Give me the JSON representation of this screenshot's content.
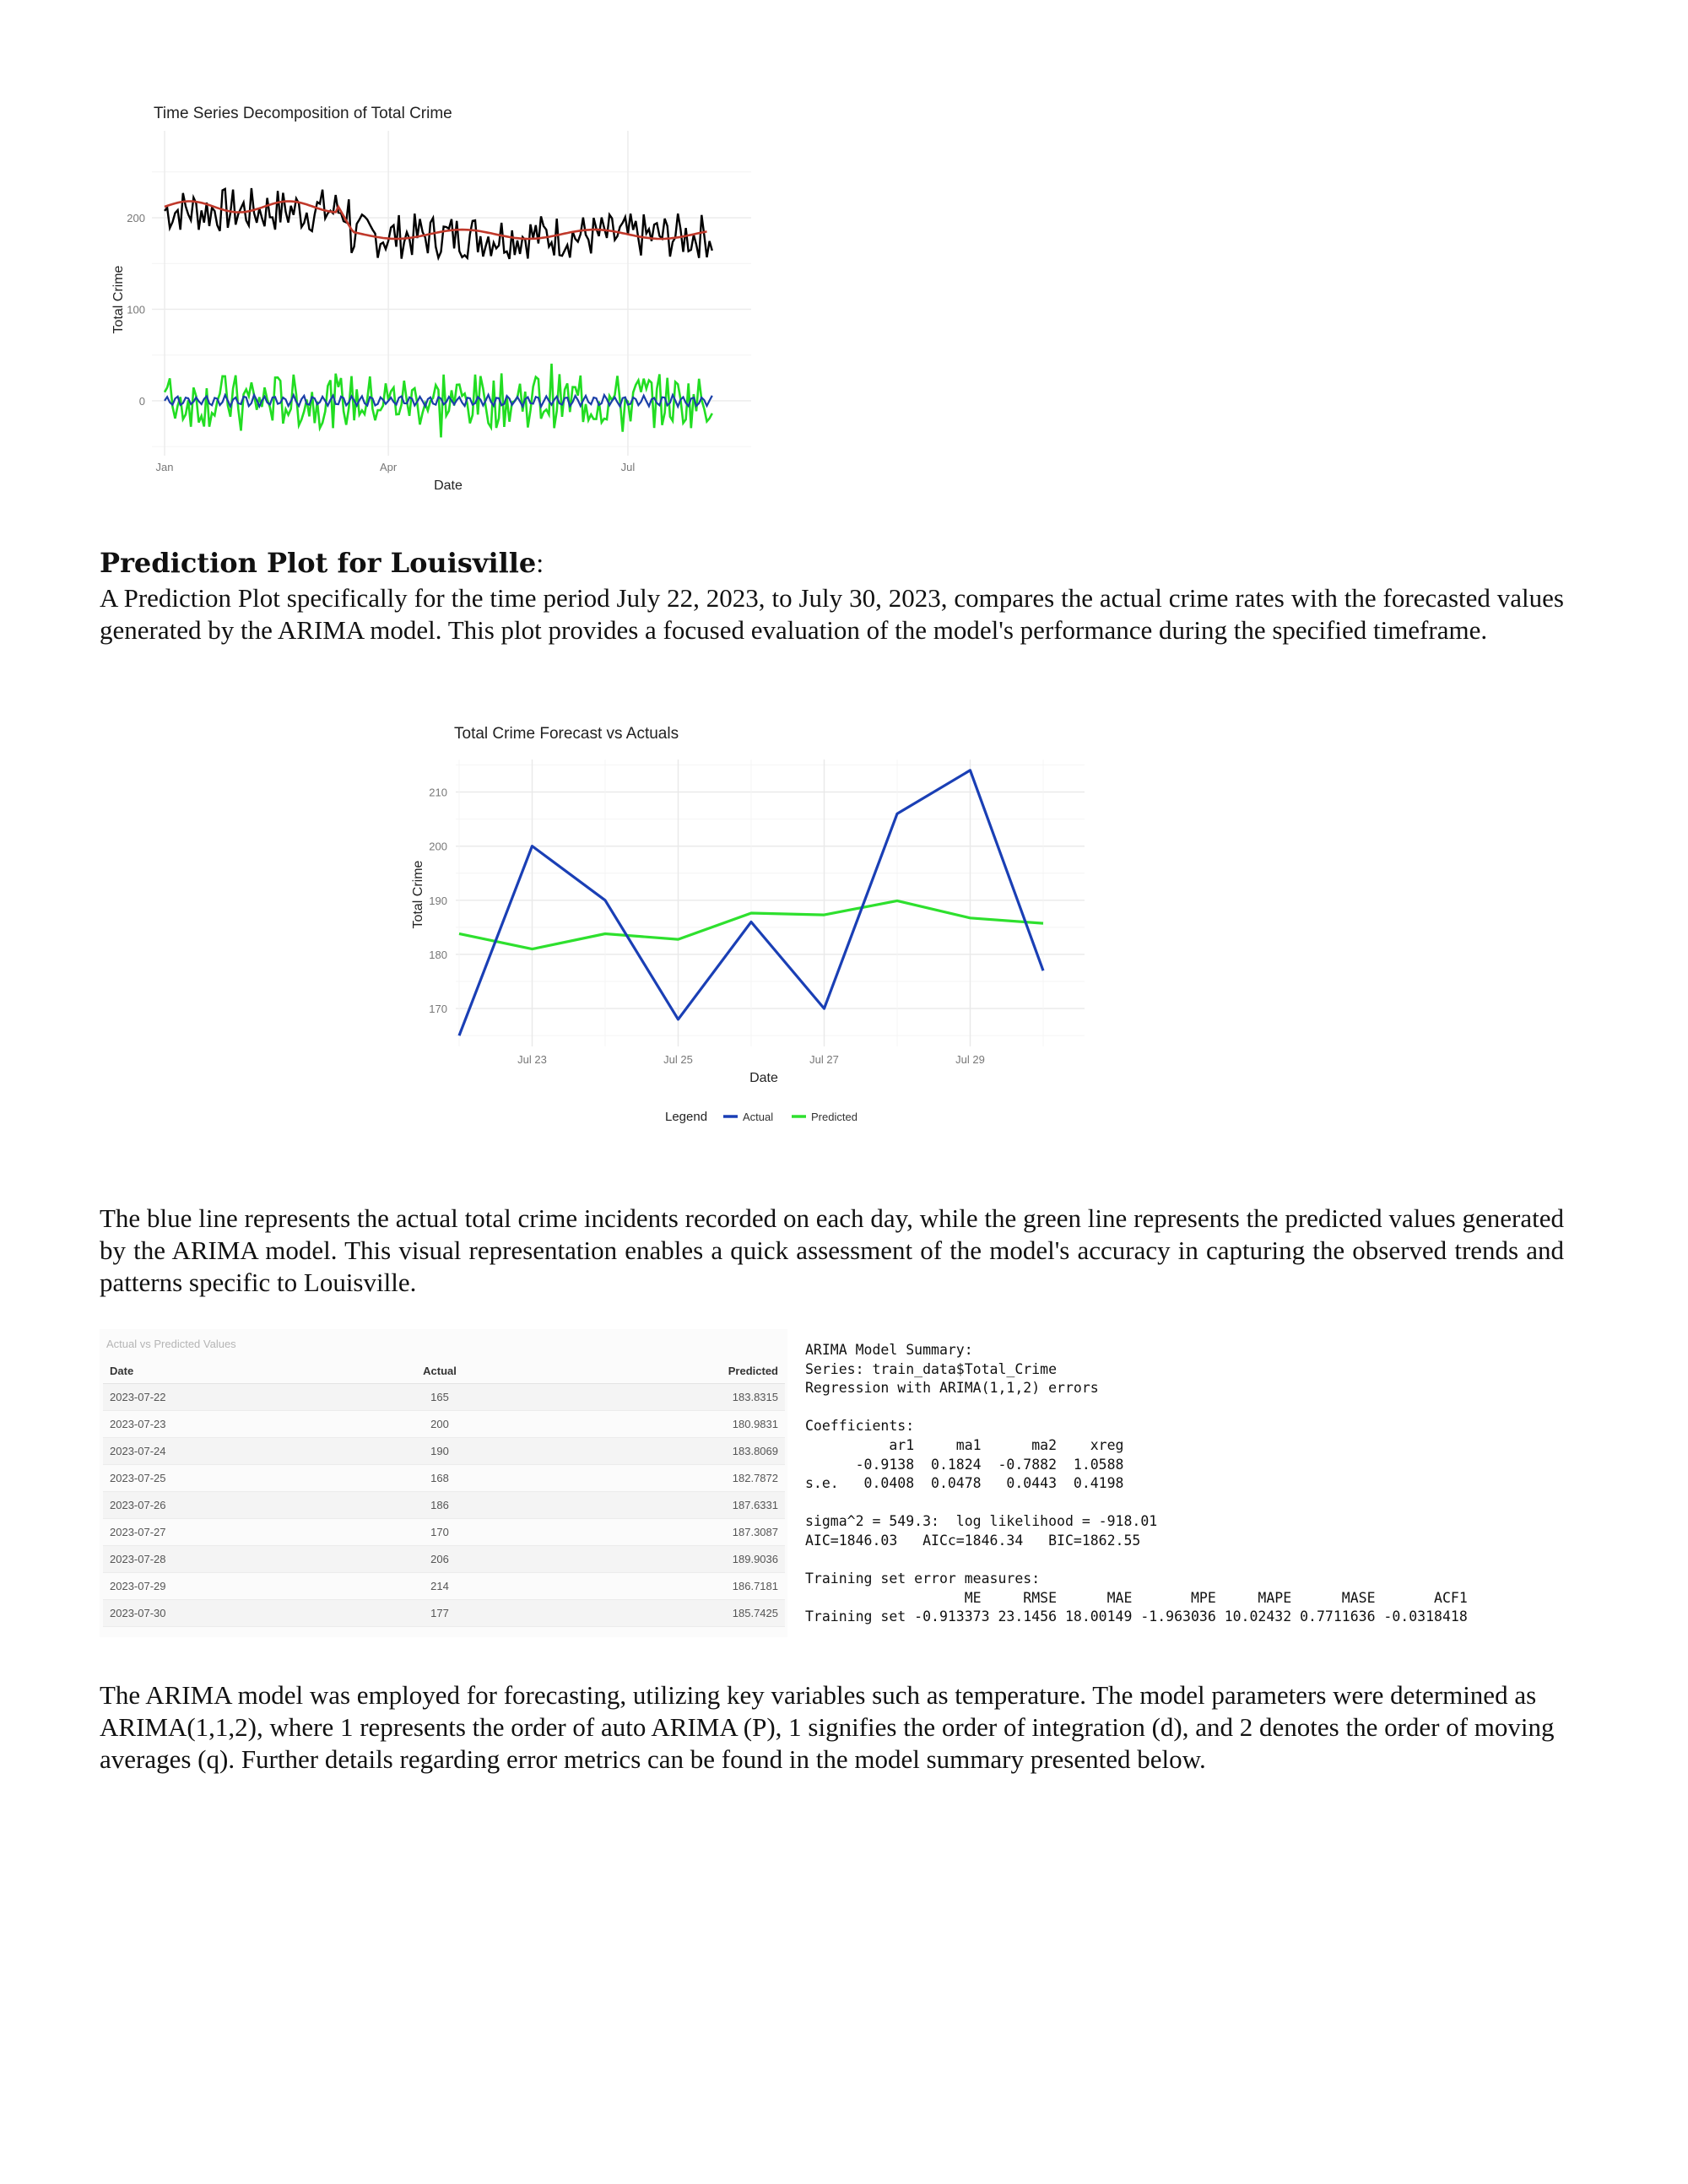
{
  "chart_data": [
    {
      "type": "line",
      "title": "Time Series Decomposition of Total Crime",
      "xlabel": "Date",
      "ylabel": "Total Crime",
      "x_ticks": [
        "Jan",
        "Apr",
        "Jul"
      ],
      "y_ticks": [
        0,
        100,
        200
      ],
      "ylim": [
        -60,
        295
      ],
      "x_range_days": [
        0,
        210
      ],
      "grid": true,
      "series": [
        {
          "color": "#000000",
          "description_values": {
            "segments": [
              {
                "from_day": 0,
                "to_day": 70,
                "level": 208
              },
              {
                "from_day": 70,
                "to_day": 210,
                "level": 180
              }
            ],
            "amplitude": 25
          }
        },
        {
          "color": "#c0392b",
          "description_values": {
            "segments": [
              {
                "from_day": 0,
                "to_day": 66,
                "level": 212
              },
              {
                "from_day": 72,
                "to_day": 206,
                "level": 182
              }
            ]
          }
        },
        {
          "color": "#22dd22",
          "description_values": {
            "center": 0,
            "amplitude": 30
          }
        },
        {
          "color": "#1a3fa8",
          "description_values": {
            "center": 0,
            "amplitude": 7
          }
        }
      ]
    },
    {
      "type": "line",
      "title": "Total Crime Forecast vs Actuals",
      "xlabel": "Date",
      "ylabel": "Total Crime",
      "x": [
        "2023-07-22",
        "2023-07-23",
        "2023-07-24",
        "2023-07-25",
        "2023-07-26",
        "2023-07-27",
        "2023-07-28",
        "2023-07-29",
        "2023-07-30"
      ],
      "x_tick_labels": [
        "Jul 23",
        "Jul 25",
        "Jul 27",
        "Jul 29"
      ],
      "x_tick_dates": [
        "2023-07-23",
        "2023-07-25",
        "2023-07-27",
        "2023-07-29"
      ],
      "y_ticks": [
        170,
        180,
        190,
        200,
        210
      ],
      "ylim": [
        163,
        216
      ],
      "grid": true,
      "legend_title": "Legend",
      "legend_position": "bottom",
      "series": [
        {
          "name": "Actual",
          "color": "#1a3fb5",
          "values": [
            165,
            200,
            190,
            168,
            186,
            170,
            206,
            214,
            177
          ]
        },
        {
          "name": "Predicted",
          "color": "#2ee02e",
          "values": [
            183.8315,
            180.9831,
            183.8069,
            182.7872,
            187.6331,
            187.3087,
            189.9036,
            186.7181,
            185.7425
          ]
        }
      ]
    }
  ],
  "heading": {
    "title": "Prediction Plot for Louisville",
    "colon": ":"
  },
  "paragraphs": {
    "p1": "A Prediction Plot specifically for the time period July 22, 2023, to July 30, 2023, compares the actual crime rates with the forecasted values generated by the ARIMA model. This plot provides a focused evaluation of the model's performance during the specified timeframe.",
    "p2": "The blue line represents the actual total crime incidents recorded on each day, while the green line represents the predicted values generated by the ARIMA model. This visual representation enables a quick assessment of the model's accuracy in capturing the observed trends and patterns specific to Louisville.",
    "p3": "The ARIMA model was employed for forecasting, utilizing key variables such as temperature. The model parameters were determined as ARIMA(1,1,2), where 1 represents the order of auto ARIMA (P), 1 signifies the order of integration (d), and 2 denotes the order of moving averages (q). Further details regarding error metrics can be found in the model summary presented below."
  },
  "table": {
    "caption": "Actual vs Predicted Values",
    "headers": {
      "date": "Date",
      "actual": "Actual",
      "predicted": "Predicted"
    },
    "rows": [
      {
        "date": "2023-07-22",
        "actual": "165",
        "predicted": "183.8315"
      },
      {
        "date": "2023-07-23",
        "actual": "200",
        "predicted": "180.9831"
      },
      {
        "date": "2023-07-24",
        "actual": "190",
        "predicted": "183.8069"
      },
      {
        "date": "2023-07-25",
        "actual": "168",
        "predicted": "182.7872"
      },
      {
        "date": "2023-07-26",
        "actual": "186",
        "predicted": "187.6331"
      },
      {
        "date": "2023-07-27",
        "actual": "170",
        "predicted": "187.3087"
      },
      {
        "date": "2023-07-28",
        "actual": "206",
        "predicted": "189.9036"
      },
      {
        "date": "2023-07-29",
        "actual": "214",
        "predicted": "186.7181"
      },
      {
        "date": "2023-07-30",
        "actual": "177",
        "predicted": "185.7425"
      }
    ]
  },
  "summary": {
    "lines": [
      "ARIMA Model Summary:",
      "Series: train_data$Total_Crime",
      "Regression with ARIMA(1,1,2) errors",
      "",
      "Coefficients:",
      "          ar1     ma1      ma2    xreg",
      "      -0.9138  0.1824  -0.7882  1.0588",
      "s.e.   0.0408  0.0478   0.0443  0.4198",
      "",
      "sigma^2 = 549.3:  log likelihood = -918.01",
      "AIC=1846.03   AICc=1846.34   BIC=1862.55",
      "",
      "Training set error measures:",
      "                   ME     RMSE      MAE       MPE     MAPE      MASE       ACF1",
      "Training set -0.913373 23.1456 18.00149 -1.963036 10.02432 0.7711636 -0.0318418"
    ]
  }
}
